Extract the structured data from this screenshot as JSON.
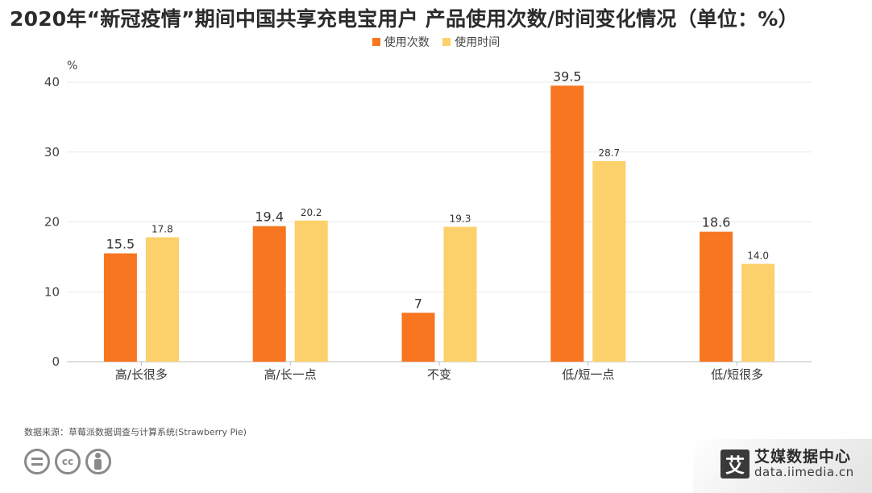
{
  "title": "2020年“新冠疫情”期间中国共享充电宝用户 产品使用次数/时间变化情况（单位：%）",
  "source": "数据来源：草莓派数据调查与计算系统(Strawberry Pie)",
  "brand": {
    "name": "艾媒数据中心",
    "url": "data.iimedia.cn",
    "logo_char": "艾"
  },
  "license_icons": [
    "equals-icon",
    "cc-icon",
    "person-icon"
  ],
  "license_label": "cc",
  "chart_data": {
    "type": "bar",
    "categories": [
      "高/长很多",
      "高/长一点",
      "不变",
      "低/短一点",
      "低/短很多"
    ],
    "series": [
      {
        "name": "使用次数",
        "color": "#f7761f",
        "values": [
          15.5,
          19.4,
          7,
          39.5,
          18.6
        ],
        "labels": [
          "15.5",
          "19.4",
          "7",
          "39.5",
          "18.6"
        ]
      },
      {
        "name": "使用时间",
        "color": "#fcd06a",
        "values": [
          17.8,
          20.2,
          19.3,
          28.7,
          14.0
        ],
        "labels": [
          "17.8",
          "20.2",
          "19.3",
          "28.7",
          "14.0"
        ]
      }
    ],
    "y_unit": "%",
    "ylim": [
      0,
      40
    ],
    "yticks": [
      0,
      10,
      20,
      30,
      40
    ],
    "grid": true,
    "legend_position": "top-center"
  }
}
